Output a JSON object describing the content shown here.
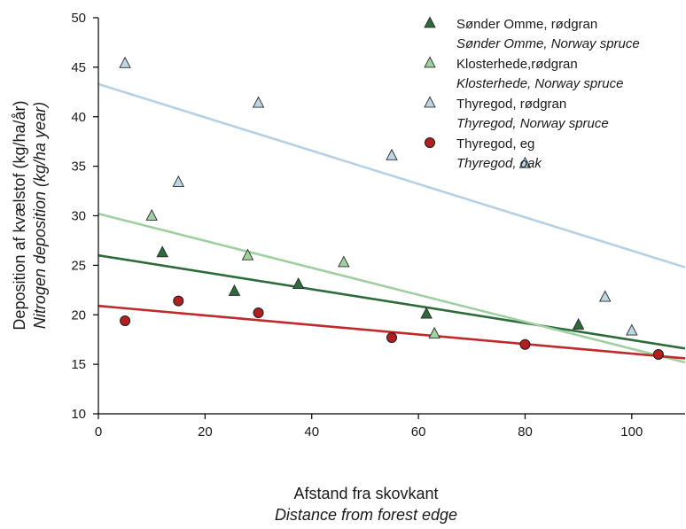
{
  "chart_data": {
    "type": "scatter",
    "xlim": [
      0,
      110
    ],
    "ylim": [
      10,
      50
    ],
    "x_ticks": [
      0,
      20,
      40,
      60,
      80,
      100
    ],
    "y_ticks": [
      10,
      15,
      20,
      25,
      30,
      35,
      40,
      45,
      50
    ],
    "xlabel": "Afstand fra skovkant",
    "xlabel_en": "Distance from forest edge",
    "ylabel": "Deposition af kvælstof (kg/ha/år)",
    "ylabel_en": "Nitrogen deposition (kg/ha year)",
    "grid": false,
    "legend_position": "top-right",
    "series": [
      {
        "name": "Sønder Omme, rødgran",
        "name_en": "Sønder Omme, Norway spruce",
        "marker": "triangle",
        "color": "#2e6b3a",
        "line_color": "#2e6b3a",
        "points": [
          [
            12,
            26.3
          ],
          [
            25.5,
            22.4
          ],
          [
            37.5,
            23.1
          ],
          [
            61.5,
            20.1
          ],
          [
            90,
            19.0
          ]
        ],
        "trend": [
          [
            0,
            26.0
          ],
          [
            110,
            16.6
          ]
        ]
      },
      {
        "name": "Klosterhede,rødgran",
        "name_en": "Klosterhede, Norway spruce",
        "marker": "triangle",
        "color": "#9fd09f",
        "line_color": "#9fd0a0",
        "points": [
          [
            10,
            30.0
          ],
          [
            28,
            26.0
          ],
          [
            46,
            25.3
          ],
          [
            63,
            18.1
          ]
        ],
        "trend": [
          [
            0,
            30.2
          ],
          [
            110,
            15.2
          ]
        ]
      },
      {
        "name": "Thyregod, rødgran",
        "name_en": "Thyregod, Norway spruce",
        "marker": "triangle",
        "color": "#bcd6e2",
        "line_color": "#b5d1e3",
        "points": [
          [
            5,
            45.4
          ],
          [
            15,
            33.4
          ],
          [
            30,
            41.4
          ],
          [
            55,
            36.1
          ],
          [
            80,
            35.3
          ],
          [
            95,
            21.8
          ],
          [
            100,
            18.4
          ]
        ],
        "trend": [
          [
            0,
            43.3
          ],
          [
            110,
            24.8
          ]
        ]
      },
      {
        "name": "Thyregod, eg",
        "name_en": "Thyregod, oak",
        "marker": "circle",
        "color": "#b21f1f",
        "line_color": "#c0292b",
        "points": [
          [
            5,
            19.4
          ],
          [
            15,
            21.4
          ],
          [
            30,
            20.2
          ],
          [
            55,
            17.7
          ],
          [
            80,
            17.0
          ],
          [
            105,
            16.0
          ]
        ],
        "trend": [
          [
            0,
            20.9
          ],
          [
            110,
            15.6
          ]
        ]
      }
    ]
  }
}
